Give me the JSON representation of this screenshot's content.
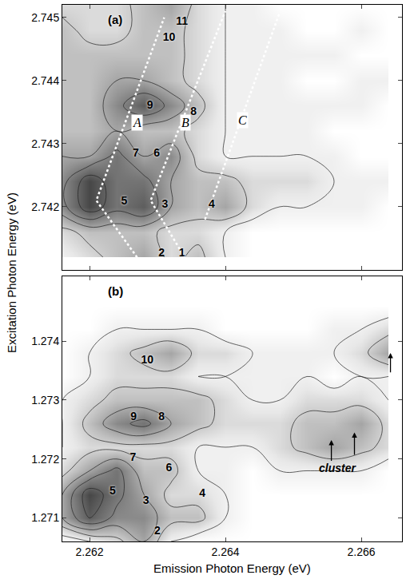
{
  "chart_data": {
    "type": "contour",
    "xlabel": "Emission Photon Energy (eV)",
    "ylabel": "Excitation Photon Energy (eV)",
    "xlim": [
      2.2616,
      2.2666
    ],
    "xticks": [
      2.262,
      2.264,
      2.266
    ],
    "zlim": [
      0,
      10
    ],
    "grid": false,
    "panels": [
      {
        "label": "(a)",
        "ylim": [
          2.741,
          2.7452
        ],
        "yticks": [
          2.742,
          2.743,
          2.744,
          2.745
        ],
        "x": [
          2.2616,
          2.262,
          2.2624,
          2.2628,
          2.2632,
          2.2636,
          2.264,
          2.2644,
          2.2648,
          2.2652,
          2.2656,
          2.266,
          2.2664
        ],
        "y": [
          2.7412,
          2.7416,
          2.742,
          2.7424,
          2.7428,
          2.7432,
          2.7436,
          2.744,
          2.7444,
          2.7448,
          2.7452
        ],
        "z": [
          [
            1,
            2,
            3,
            4,
            2,
            3,
            1,
            0,
            0,
            0,
            0,
            0,
            0
          ],
          [
            2,
            3,
            3,
            3,
            2,
            2,
            1,
            0,
            0,
            0,
            0,
            0,
            0
          ],
          [
            5,
            8,
            6,
            7,
            4,
            3,
            4,
            2,
            1,
            1,
            1,
            1,
            0
          ],
          [
            5,
            8,
            6,
            6,
            4,
            3,
            3,
            2,
            2,
            2,
            1,
            1,
            1
          ],
          [
            4,
            4,
            6,
            4,
            5,
            2,
            1,
            1,
            1,
            1,
            1,
            0,
            0
          ],
          [
            3,
            3,
            4,
            3,
            3,
            2,
            1,
            1,
            1,
            1,
            0,
            0,
            0
          ],
          [
            3,
            3,
            5,
            7,
            5,
            3,
            1,
            1,
            1,
            1,
            1,
            1,
            0
          ],
          [
            3,
            3,
            4,
            4,
            3,
            2,
            1,
            1,
            1,
            0,
            0,
            1,
            1
          ],
          [
            3,
            3,
            3,
            3,
            3,
            2,
            1,
            1,
            1,
            1,
            1,
            0,
            0
          ],
          [
            3,
            2,
            2,
            3,
            3,
            2,
            1,
            1,
            1,
            0,
            0,
            1,
            0
          ],
          [
            2,
            2,
            2,
            3,
            4,
            2,
            1,
            1,
            0,
            0,
            0,
            0,
            0
          ]
        ],
        "peaks": [
          {
            "label": "1",
            "x": 2.26336,
            "y": 2.74126
          },
          {
            "label": "2",
            "x": 2.26306,
            "y": 2.74126
          },
          {
            "label": "3",
            "x": 2.26311,
            "y": 2.74203
          },
          {
            "label": "4",
            "x": 2.2638,
            "y": 2.74203
          },
          {
            "label": "5",
            "x": 2.26251,
            "y": 2.74208
          },
          {
            "label": "6",
            "x": 2.26299,
            "y": 2.74284
          },
          {
            "label": "7",
            "x": 2.26268,
            "y": 2.74284
          },
          {
            "label": "8",
            "x": 2.26353,
            "y": 2.7435
          },
          {
            "label": "9",
            "x": 2.26289,
            "y": 2.7436
          },
          {
            "label": "10",
            "x": 2.26317,
            "y": 2.74467
          },
          {
            "label": "11",
            "x": 2.26336,
            "y": 2.74493
          }
        ],
        "lines": [
          {
            "label": "A",
            "x": [
              2.2627,
              2.2621,
              2.2631
            ],
            "y": [
              2.7412,
              2.7421,
              2.745
            ],
            "label_x": 2.2627,
            "label_y": 2.74334,
            "color": "white",
            "line_style": "dot"
          },
          {
            "label": "B",
            "x": [
              2.2634,
              2.2629,
              2.264
            ],
            "y": [
              2.7412,
              2.7421,
              2.7451
            ],
            "label_x": 2.26341,
            "label_y": 2.74334,
            "color": "white",
            "line_style": "dot"
          },
          {
            "label": "C",
            "x": [
              2.2637,
              2.2648
            ],
            "y": [
              2.7418,
              2.74508
            ],
            "label_x": 2.26425,
            "label_y": 2.74337,
            "color": "white",
            "line_style": "dot"
          }
        ]
      },
      {
        "label": "(b)",
        "ylim": [
          1.2706,
          1.2751
        ],
        "yticks": [
          1.271,
          1.272,
          1.273,
          1.274
        ],
        "x": [
          2.2616,
          2.262,
          2.2624,
          2.2628,
          2.2632,
          2.2636,
          2.264,
          2.2644,
          2.2648,
          2.2652,
          2.2656,
          2.266,
          2.2664
        ],
        "y": [
          1.2706,
          1.271,
          1.2714,
          1.2718,
          1.2722,
          1.2726,
          1.273,
          1.2734,
          1.2738,
          1.2742,
          1.2746,
          1.275
        ],
        "z": [
          [
            0,
            1,
            2,
            4,
            1,
            0,
            0,
            0,
            0,
            0,
            0,
            0,
            0
          ],
          [
            4,
            7,
            5,
            5,
            3,
            3,
            1,
            0,
            0,
            0,
            0,
            0,
            0
          ],
          [
            4,
            8,
            6,
            4,
            2,
            2,
            1,
            0,
            0,
            0,
            0,
            0,
            0
          ],
          [
            2,
            4,
            6,
            3,
            3,
            1,
            1,
            0,
            1,
            1,
            1,
            1,
            0
          ],
          [
            1,
            2,
            2,
            2,
            2,
            1,
            1,
            1,
            2,
            3,
            4,
            3,
            2
          ],
          [
            1,
            3,
            5,
            6,
            4,
            3,
            2,
            2,
            2,
            3,
            3,
            4,
            2
          ],
          [
            1,
            2,
            3,
            3,
            3,
            3,
            2,
            1,
            1,
            2,
            2,
            2,
            1
          ],
          [
            0,
            1,
            2,
            2,
            2,
            1,
            1,
            1,
            1,
            1,
            0,
            1,
            1
          ],
          [
            0,
            1,
            2,
            3,
            4,
            2,
            2,
            1,
            1,
            1,
            1,
            2,
            4
          ],
          [
            0,
            0,
            1,
            1,
            1,
            1,
            0,
            0,
            0,
            0,
            1,
            1,
            2
          ],
          [
            0,
            0,
            0,
            0,
            0,
            0,
            0,
            0,
            0,
            0,
            0,
            0,
            0
          ],
          [
            0,
            0,
            0,
            0,
            0,
            0,
            0,
            0,
            0,
            0,
            0,
            0,
            0
          ]
        ],
        "peaks": [
          {
            "label": "2",
            "x": 2.263,
            "y": 1.27077
          },
          {
            "label": "3",
            "x": 2.26283,
            "y": 1.27129
          },
          {
            "label": "4",
            "x": 2.26366,
            "y": 1.2714
          },
          {
            "label": "5",
            "x": 2.26234,
            "y": 1.27145
          },
          {
            "label": "6",
            "x": 2.26317,
            "y": 1.27184
          },
          {
            "label": "7",
            "x": 2.26264,
            "y": 1.27201
          },
          {
            "label": "8",
            "x": 2.26306,
            "y": 1.27271
          },
          {
            "label": "9",
            "x": 2.26265,
            "y": 1.27271
          },
          {
            "label": "10",
            "x": 2.26285,
            "y": 1.27367
          }
        ],
        "annotations": [
          {
            "text": "cluster",
            "x": 2.26565,
            "y": 1.27185
          }
        ],
        "arrows": [
          {
            "x": 2.26556,
            "y_from": 1.27195,
            "y_to": 1.27232
          },
          {
            "x": 2.2659,
            "y_from": 1.27205,
            "y_to": 1.27245
          },
          {
            "x": 2.26643,
            "y_from": 1.27345,
            "y_to": 1.2738
          }
        ]
      }
    ]
  }
}
